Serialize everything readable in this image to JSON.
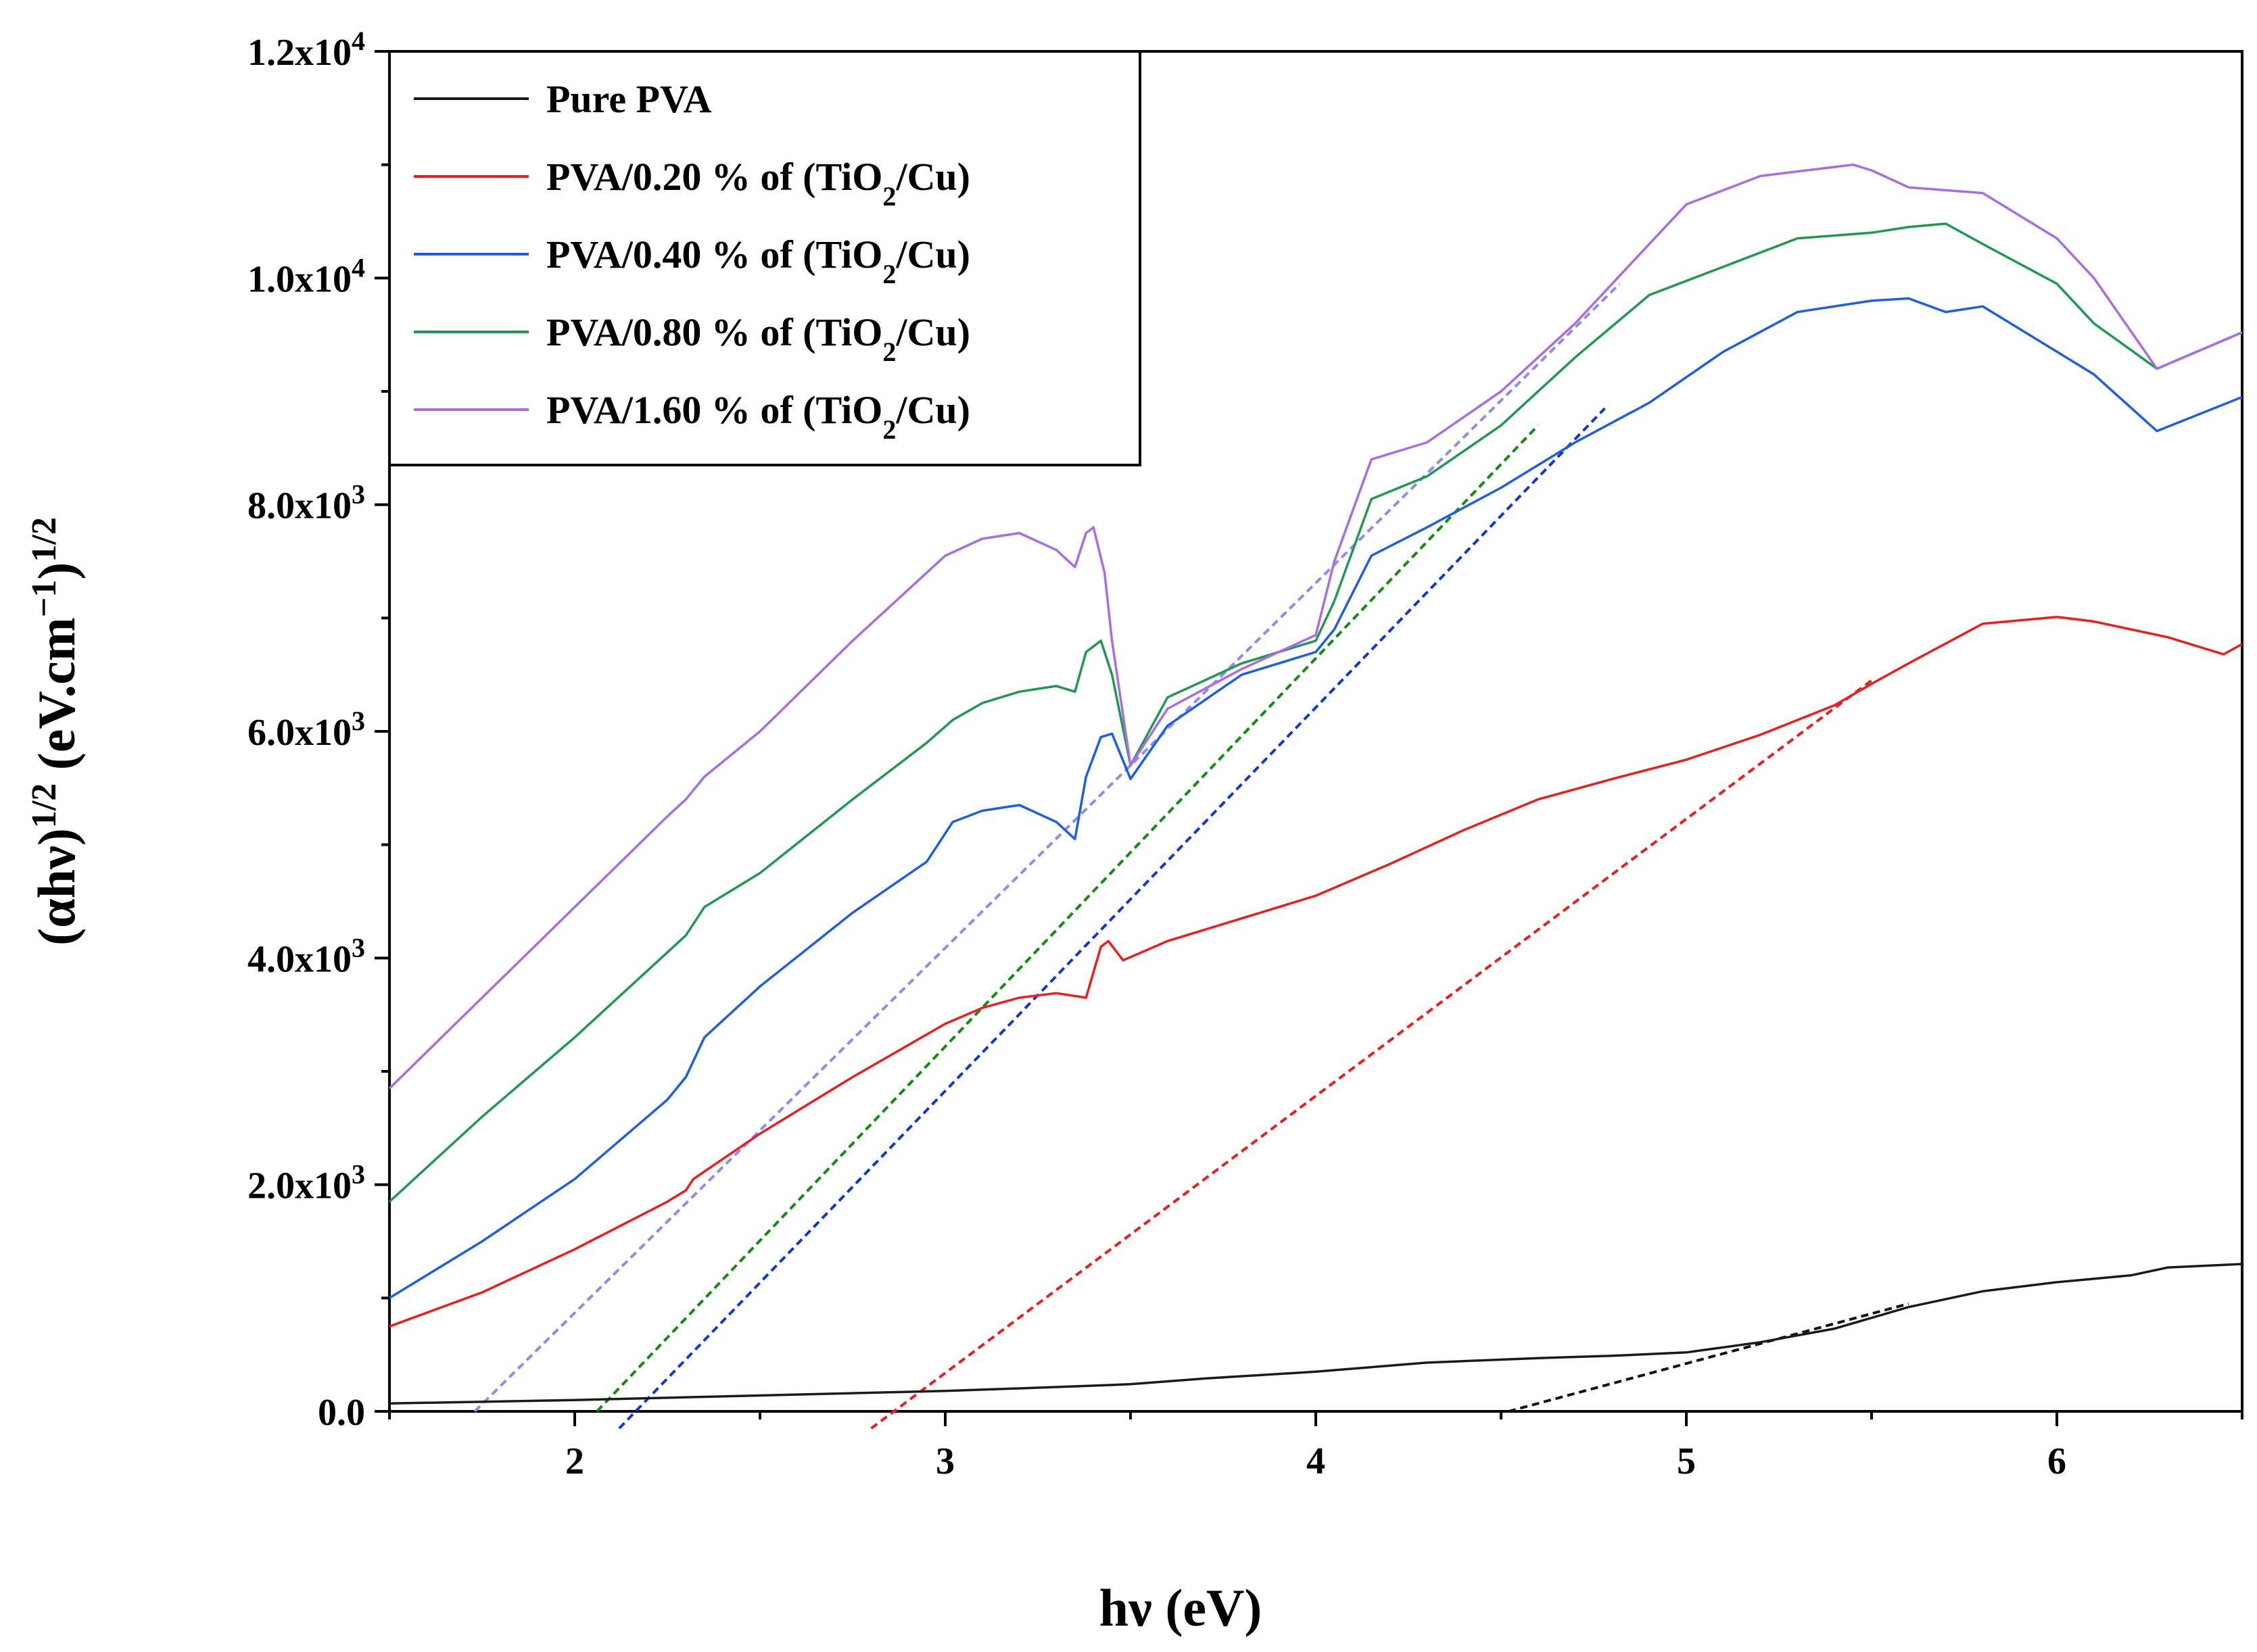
{
  "chart_data": {
    "type": "line",
    "xlabel": "hν (eV)",
    "ylabel_parts": {
      "a": "(αhν)",
      "b": "1/2",
      "c": " (eV.cm",
      "d": "−1",
      "e": ")",
      "f": "1/2"
    },
    "xlim": [
      1.5,
      6.5
    ],
    "ylim": [
      0,
      12000
    ],
    "grid": false,
    "legend_position": "top-left",
    "x_ticks": [
      2,
      3,
      4,
      5,
      6
    ],
    "x_tick_labels": [
      "2",
      "3",
      "4",
      "5",
      "6"
    ],
    "y_ticks": [
      0,
      2000,
      4000,
      6000,
      8000,
      10000,
      12000
    ],
    "y_tick_labels": [
      {
        "base": "0.0",
        "exp": ""
      },
      {
        "base": "2.0x10",
        "exp": "3"
      },
      {
        "base": "4.0x10",
        "exp": "3"
      },
      {
        "base": "6.0x10",
        "exp": "3"
      },
      {
        "base": "8.0x10",
        "exp": "3"
      },
      {
        "base": "1.0x10",
        "exp": "4"
      },
      {
        "base": "1.2x10",
        "exp": "4"
      }
    ],
    "series": [
      {
        "name": "Pure PVA",
        "legend": {
          "pre": "Pure PVA",
          "sub": "",
          "post": ""
        },
        "color": "#1a1a1a",
        "x": [
          1.5,
          2.0,
          2.5,
          3.0,
          3.3,
          3.5,
          3.7,
          4.0,
          4.3,
          4.6,
          4.8,
          5.0,
          5.2,
          5.4,
          5.6,
          5.8,
          6.0,
          6.2,
          6.3,
          6.5
        ],
        "y": [
          70,
          100,
          140,
          180,
          215,
          240,
          290,
          350,
          430,
          470,
          490,
          520,
          610,
          730,
          920,
          1060,
          1140,
          1200,
          1270,
          1300
        ]
      },
      {
        "name": "PVA/0.20 % of (TiO2/Cu)",
        "legend": {
          "pre": "PVA/0.20 % of (TiO",
          "sub": "2",
          "post": "/Cu)"
        },
        "color": "#ee1c1c",
        "x": [
          1.5,
          1.75,
          2.0,
          2.25,
          2.3,
          2.32,
          2.5,
          2.75,
          3.0,
          3.1,
          3.2,
          3.3,
          3.38,
          3.42,
          3.44,
          3.48,
          3.6,
          3.8,
          4.0,
          4.2,
          4.4,
          4.6,
          4.8,
          5.0,
          5.2,
          5.4,
          5.5,
          5.6,
          5.8,
          6.0,
          6.1,
          6.3,
          6.45,
          6.5
        ],
        "y": [
          750,
          1050,
          1430,
          1850,
          1950,
          2050,
          2450,
          2950,
          3420,
          3560,
          3650,
          3690,
          3650,
          4100,
          4150,
          3980,
          4150,
          4350,
          4550,
          4830,
          5130,
          5400,
          5580,
          5750,
          5970,
          6230,
          6420,
          6600,
          6950,
          7010,
          6970,
          6830,
          6680,
          6770
        ]
      },
      {
        "name": "PVA/0.40 % of (TiO2/Cu)",
        "legend": {
          "pre": "PVA/0.40 % of (TiO",
          "sub": "2",
          "post": "/Cu)"
        },
        "color": "#1c5ee6",
        "x": [
          1.5,
          1.75,
          2.0,
          2.25,
          2.3,
          2.35,
          2.5,
          2.75,
          2.95,
          3.02,
          3.1,
          3.2,
          3.3,
          3.35,
          3.38,
          3.42,
          3.45,
          3.5,
          3.6,
          3.8,
          4.0,
          4.05,
          4.15,
          4.3,
          4.5,
          4.7,
          4.9,
          5.1,
          5.3,
          5.5,
          5.6,
          5.7,
          5.8,
          6.0,
          6.1,
          6.27,
          6.5
        ],
        "y": [
          1000,
          1500,
          2050,
          2750,
          2950,
          3300,
          3750,
          4400,
          4850,
          5200,
          5300,
          5350,
          5200,
          5050,
          5600,
          5950,
          5980,
          5580,
          6050,
          6500,
          6700,
          6900,
          7550,
          7800,
          8150,
          8550,
          8900,
          9350,
          9700,
          9800,
          9820,
          9700,
          9750,
          9350,
          9150,
          8650,
          8950
        ]
      },
      {
        "name": "PVA/0.80 % of (TiO2/Cu)",
        "legend": {
          "pre": "PVA/0.80 % of (TiO",
          "sub": "2",
          "post": "/Cu)"
        },
        "color": "#1e9a50",
        "x": [
          1.5,
          1.75,
          2.0,
          2.25,
          2.3,
          2.35,
          2.5,
          2.75,
          2.95,
          3.02,
          3.1,
          3.2,
          3.3,
          3.35,
          3.38,
          3.42,
          3.45,
          3.5,
          3.6,
          3.8,
          4.0,
          4.05,
          4.15,
          4.3,
          4.5,
          4.7,
          4.9,
          5.1,
          5.3,
          5.5,
          5.6,
          5.7,
          5.8,
          6.0,
          6.1,
          6.27,
          6.5
        ],
        "y": [
          1850,
          2600,
          3300,
          4050,
          4200,
          4450,
          4750,
          5400,
          5900,
          6100,
          6250,
          6350,
          6400,
          6350,
          6700,
          6800,
          6500,
          5700,
          6300,
          6600,
          6800,
          7150,
          8050,
          8250,
          8700,
          9300,
          9850,
          10100,
          10350,
          10400,
          10450,
          10480,
          10300,
          9950,
          9600,
          9200,
          9520
        ]
      },
      {
        "name": "PVA/1.60 % of (TiO2/Cu)",
        "legend": {
          "pre": "PVA/1.60 % of (TiO",
          "sub": "2",
          "post": "/Cu)"
        },
        "color": "#a86ce6",
        "x": [
          1.5,
          1.75,
          2.0,
          2.25,
          2.3,
          2.35,
          2.5,
          2.75,
          3.0,
          3.1,
          3.2,
          3.3,
          3.35,
          3.38,
          3.4,
          3.43,
          3.45,
          3.5,
          3.6,
          3.8,
          4.0,
          4.05,
          4.15,
          4.3,
          4.5,
          4.7,
          4.9,
          5.0,
          5.2,
          5.4,
          5.45,
          5.5,
          5.6,
          5.8,
          6.0,
          6.1,
          6.27,
          6.5
        ],
        "y": [
          2850,
          3650,
          4450,
          5250,
          5400,
          5600,
          6000,
          6800,
          7550,
          7700,
          7750,
          7600,
          7450,
          7750,
          7800,
          7400,
          6800,
          5700,
          6200,
          6550,
          6850,
          7500,
          8400,
          8550,
          9000,
          9600,
          10300,
          10650,
          10900,
          10980,
          11000,
          10950,
          10800,
          10750,
          10350,
          10000,
          9200,
          9520
        ]
      }
    ],
    "tangent_lines": [
      {
        "series": "Pure PVA",
        "color": "#111111",
        "x": [
          4.52,
          5.6
        ],
        "y": [
          0,
          950
        ]
      },
      {
        "series": "PVA/0.20 % of (TiO2/Cu)",
        "color": "#ee1c1c",
        "x": [
          2.8,
          5.5
        ],
        "y": [
          -150,
          6450
        ]
      },
      {
        "series": "PVA/0.40 % of (TiO2/Cu)",
        "color": "#1036d8",
        "x": [
          2.12,
          4.78
        ],
        "y": [
          -150,
          8850
        ]
      },
      {
        "series": "PVA/0.80 % of (TiO2/Cu)",
        "color": "#118c11",
        "x": [
          2.06,
          4.6
        ],
        "y": [
          0,
          8700
        ]
      },
      {
        "series": "PVA/1.60 % of (TiO2/Cu)",
        "color": "#8c8cf0",
        "x": [
          1.73,
          4.82
        ],
        "y": [
          0,
          9950
        ]
      }
    ]
  }
}
